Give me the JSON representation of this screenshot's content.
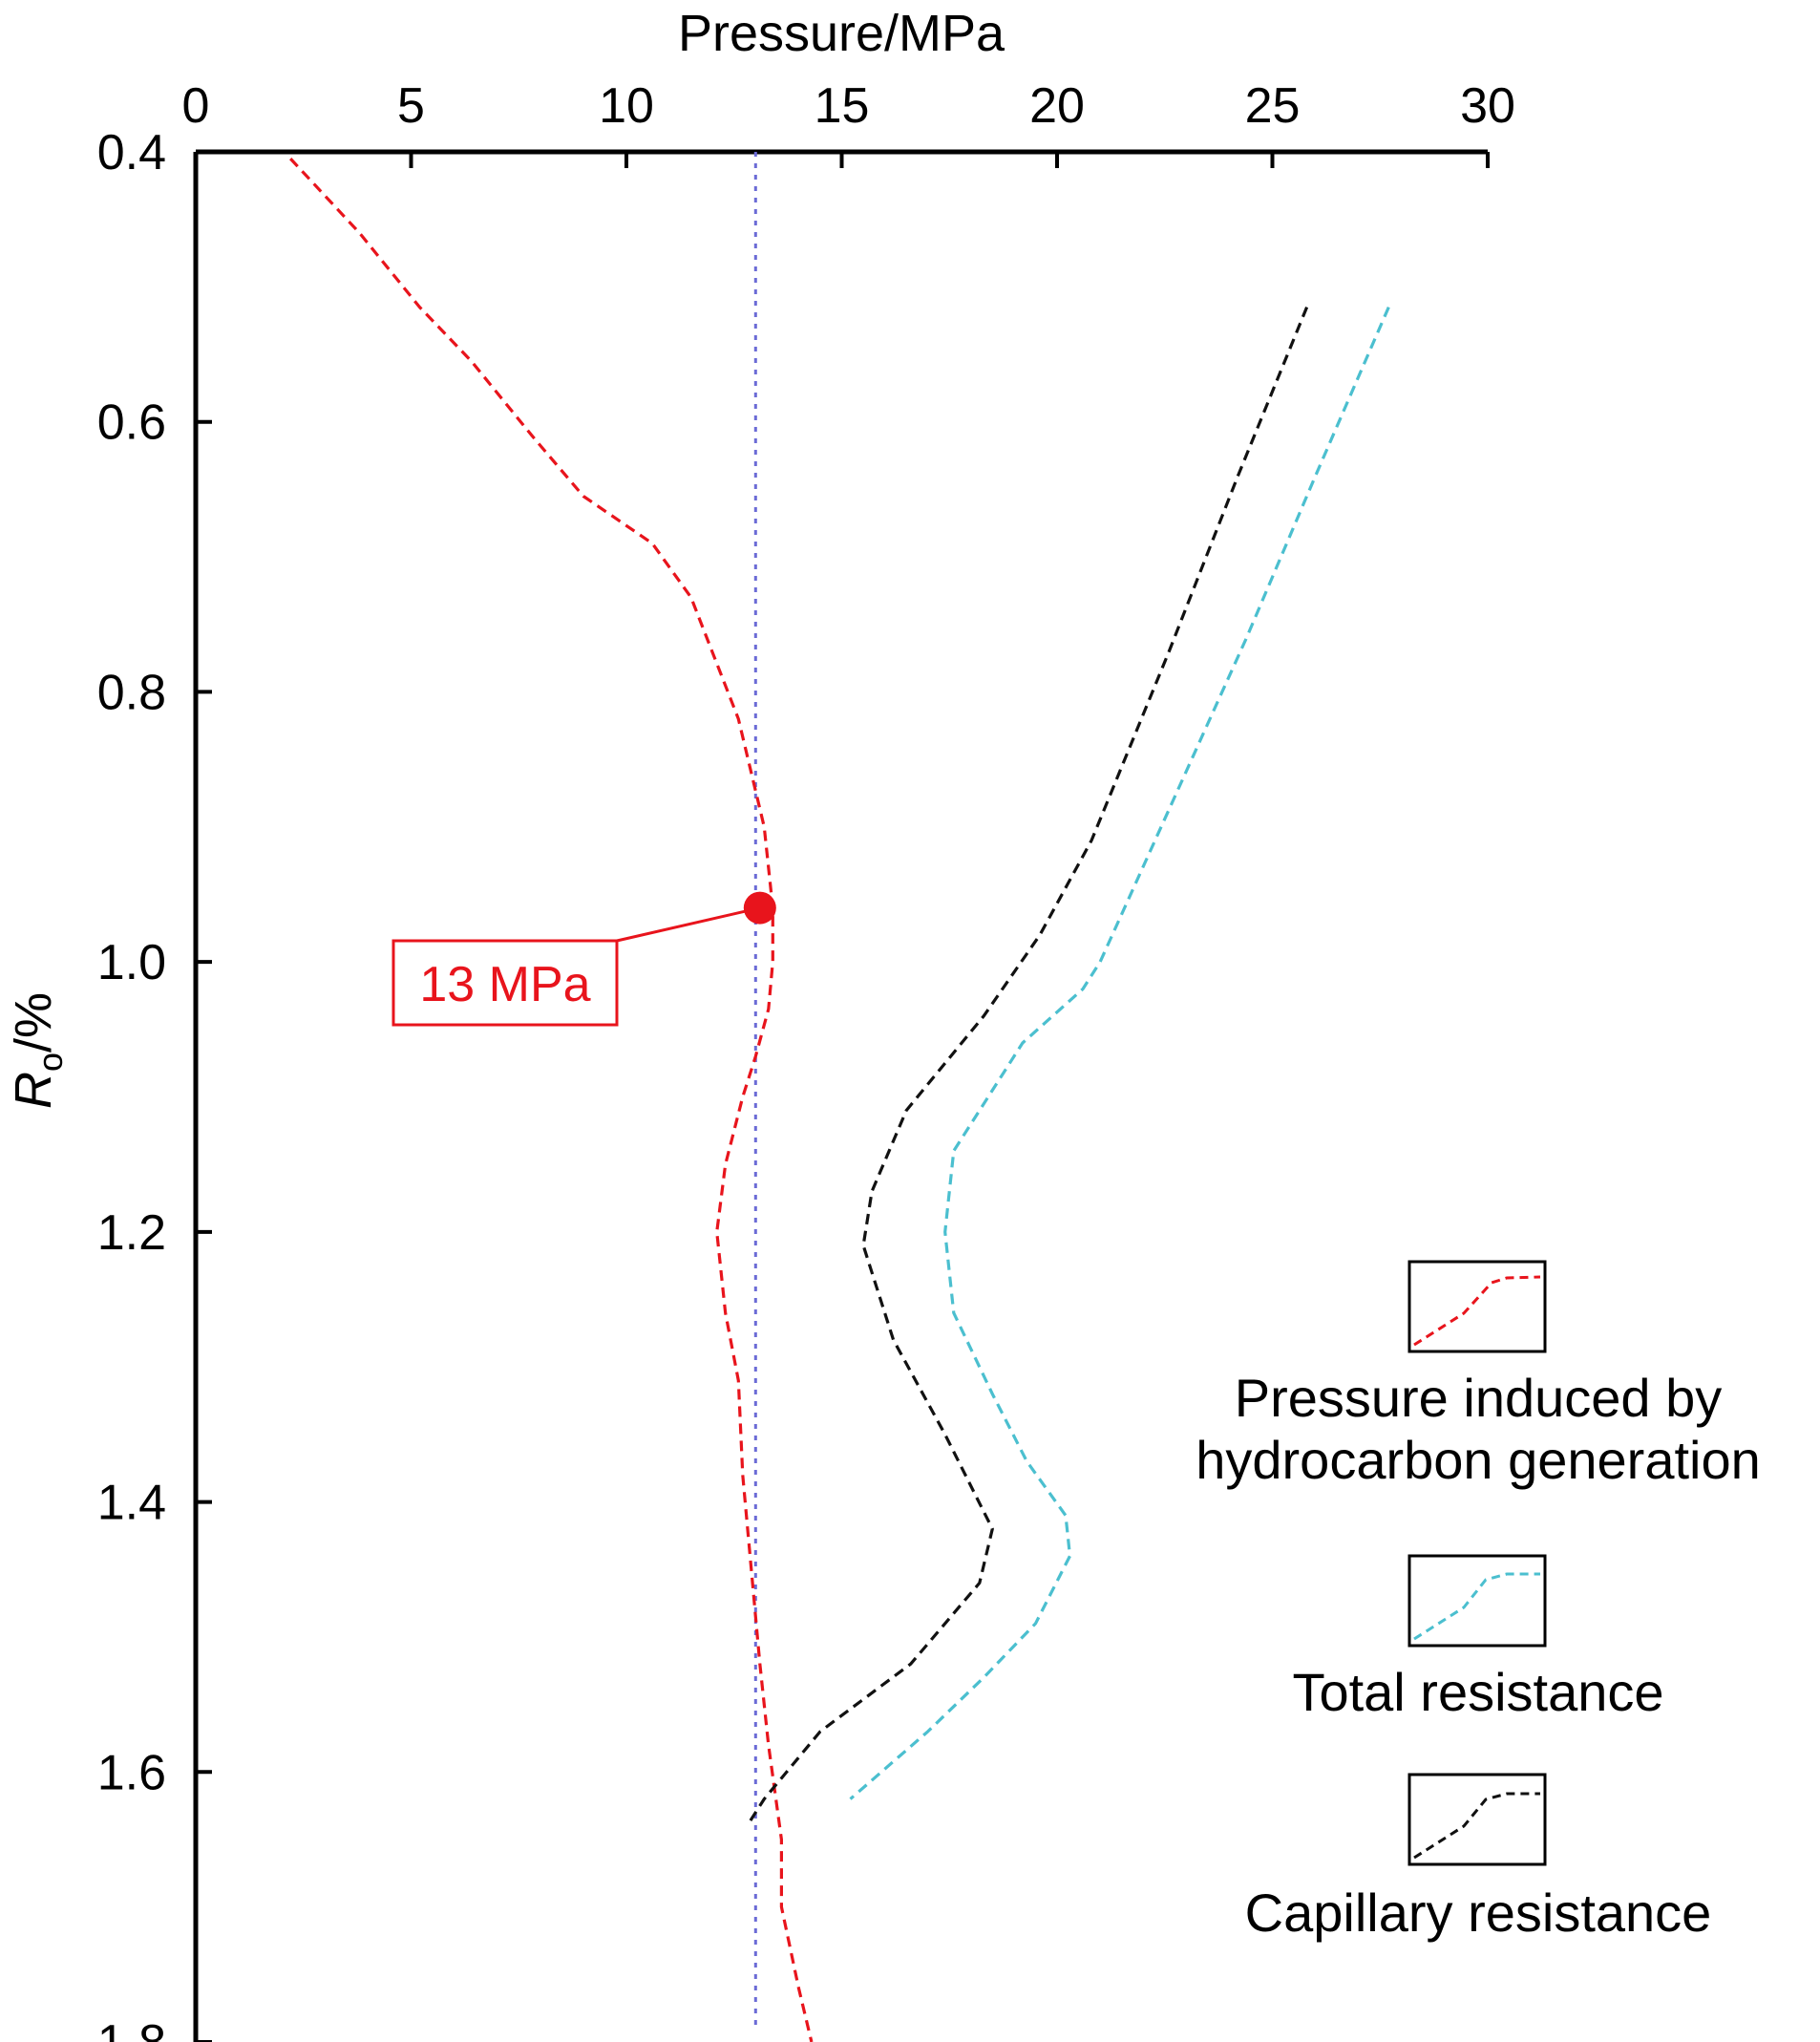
{
  "chart_data": {
    "type": "line",
    "xlabel": "Pressure/MPa",
    "ylabel_main": "R",
    "ylabel_sub": "o",
    "ylabel_unit": "/%",
    "x_axis_position": "top",
    "y_axis_inverted": true,
    "xlim": [
      0,
      30
    ],
    "ylim": [
      0.4,
      1.8
    ],
    "x_ticks": [
      0,
      5,
      10,
      15,
      20,
      25,
      30
    ],
    "x_tick_labels": [
      "0",
      "5",
      "10",
      "15",
      "20",
      "25",
      "30"
    ],
    "y_ticks": [
      0.4,
      0.6,
      0.8,
      1.0,
      1.2,
      1.4,
      1.6,
      1.8
    ],
    "y_tick_labels": [
      "0.4",
      "0.6",
      "0.8",
      "1.0",
      "1.2",
      "1.4",
      "1.6",
      "1.8"
    ],
    "grid": false,
    "legend_position": "bottom-right",
    "series": [
      {
        "name": "Pressure induced by hydrocarbon generation",
        "color": "#e8141c",
        "style": "dashed",
        "points": [
          [
            2.2,
            0.405
          ],
          [
            3.8,
            0.46
          ],
          [
            5.2,
            0.515
          ],
          [
            6.4,
            0.555
          ],
          [
            7.8,
            0.61
          ],
          [
            9.0,
            0.655
          ],
          [
            10.6,
            0.69
          ],
          [
            11.5,
            0.73
          ],
          [
            12.6,
            0.82
          ],
          [
            12.9,
            0.86
          ],
          [
            13.2,
            0.9
          ],
          [
            13.4,
            0.96
          ],
          [
            13.4,
            1.0
          ],
          [
            13.3,
            1.035
          ],
          [
            13.0,
            1.07
          ],
          [
            12.7,
            1.1
          ],
          [
            12.3,
            1.15
          ],
          [
            12.1,
            1.2
          ],
          [
            12.3,
            1.26
          ],
          [
            12.6,
            1.31
          ],
          [
            12.7,
            1.38
          ],
          [
            12.9,
            1.45
          ],
          [
            13.1,
            1.52
          ],
          [
            13.3,
            1.58
          ],
          [
            13.6,
            1.65
          ],
          [
            13.6,
            1.7
          ],
          [
            14.0,
            1.76
          ],
          [
            14.3,
            1.8
          ]
        ]
      },
      {
        "name": "Total resistance",
        "color": "#4bbfcf",
        "style": "dashed",
        "points": [
          [
            27.7,
            0.515
          ],
          [
            26.0,
            0.64
          ],
          [
            24.4,
            0.76
          ],
          [
            22.7,
            0.88
          ],
          [
            21.0,
            1.0
          ],
          [
            20.6,
            1.02
          ],
          [
            19.2,
            1.06
          ],
          [
            17.6,
            1.14
          ],
          [
            17.4,
            1.2
          ],
          [
            17.6,
            1.26
          ],
          [
            18.5,
            1.32
          ],
          [
            19.3,
            1.37
          ],
          [
            20.2,
            1.41
          ],
          [
            20.3,
            1.44
          ],
          [
            19.5,
            1.49
          ],
          [
            18.3,
            1.53
          ],
          [
            17.0,
            1.57
          ],
          [
            15.2,
            1.62
          ]
        ]
      },
      {
        "name": "Capillary resistance",
        "color": "#111111",
        "style": "dashed",
        "points": [
          [
            25.8,
            0.515
          ],
          [
            24.2,
            0.64
          ],
          [
            22.6,
            0.77
          ],
          [
            20.8,
            0.91
          ],
          [
            19.6,
            0.98
          ],
          [
            18.3,
            1.04
          ],
          [
            16.5,
            1.11
          ],
          [
            15.7,
            1.17
          ],
          [
            15.5,
            1.21
          ],
          [
            16.2,
            1.28
          ],
          [
            17.4,
            1.35
          ],
          [
            18.5,
            1.42
          ],
          [
            18.2,
            1.46
          ],
          [
            16.6,
            1.52
          ],
          [
            14.5,
            1.57
          ],
          [
            13.2,
            1.62
          ],
          [
            12.8,
            1.64
          ]
        ]
      }
    ],
    "reference_line": {
      "x": 13,
      "color": "#6b6bd6",
      "style": "dotted"
    },
    "annotation": {
      "label": "13 MPa",
      "color": "#e8141c",
      "point": [
        13.1,
        0.96
      ]
    }
  }
}
